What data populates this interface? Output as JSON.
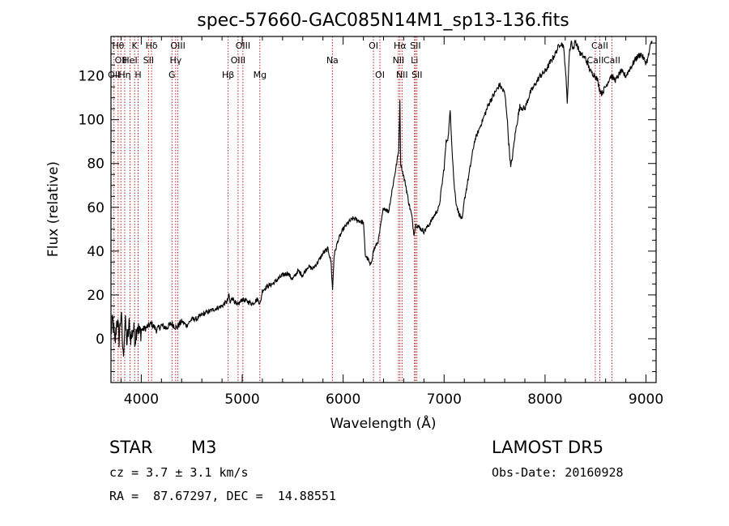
{
  "chart_data": {
    "type": "line",
    "title": "spec-57660-GAC085N14M1_sp13-136.fits",
    "xlabel": "Wavelength (Å)",
    "ylabel": "Flux (relative)",
    "xlim": [
      3700,
      9100
    ],
    "ylim": [
      -20,
      138
    ],
    "x_ticks": [
      4000,
      5000,
      6000,
      7000,
      8000,
      9000
    ],
    "y_ticks": [
      0,
      20,
      40,
      60,
      80,
      100,
      120
    ],
    "line_color": "#000000",
    "marker_color": "#b00000",
    "grid": false,
    "legend": "none",
    "series": [
      {
        "x": [
          3700,
          3720,
          3740,
          3760,
          3780,
          3800,
          3820,
          3840,
          3860,
          3880,
          3900,
          3920,
          3940,
          3960,
          3980,
          4000,
          4050,
          4100,
          4150,
          4200,
          4250,
          4300,
          4350,
          4400,
          4450,
          4500,
          4550,
          4600,
          4650,
          4700,
          4750,
          4800,
          4850,
          4870,
          4880,
          4900,
          4950,
          5000,
          5050,
          5100,
          5150,
          5180,
          5200,
          5250,
          5300,
          5350,
          5400,
          5450,
          5500,
          5550,
          5600,
          5650,
          5700,
          5750,
          5800,
          5850,
          5880,
          5895,
          5910,
          5950,
          6000,
          6050,
          6100,
          6150,
          6200,
          6220,
          6250,
          6270,
          6300,
          6350,
          6400,
          6450,
          6500,
          6530,
          6550,
          6562,
          6570,
          6590,
          6620,
          6650,
          6680,
          6700,
          6720,
          6750,
          6800,
          6850,
          6900,
          6950,
          7000,
          7020,
          7040,
          7060,
          7080,
          7100,
          7120,
          7140,
          7160,
          7180,
          7200,
          7250,
          7300,
          7350,
          7400,
          7450,
          7500,
          7550,
          7600,
          7620,
          7640,
          7660,
          7680,
          7700,
          7720,
          7750,
          7800,
          7850,
          7900,
          7950,
          8000,
          8050,
          8100,
          8150,
          8180,
          8200,
          8220,
          8240,
          8260,
          8280,
          8300,
          8350,
          8400,
          8450,
          8500,
          8520,
          8540,
          8560,
          8600,
          8650,
          8700,
          8750,
          8800,
          8850,
          8900,
          8950,
          9000,
          9020,
          9040,
          9060
        ],
        "y": [
          3,
          8,
          -3,
          10,
          0,
          12,
          -8,
          8,
          -2,
          6,
          0,
          5,
          0,
          7,
          2,
          4,
          5,
          7,
          4,
          6,
          5,
          7,
          5,
          8,
          6,
          9,
          9,
          11,
          12,
          13,
          14,
          15,
          17,
          20,
          16,
          19,
          15,
          18,
          17,
          16,
          18,
          16,
          22,
          24,
          25,
          27,
          29,
          30,
          27,
          31,
          29,
          33,
          32,
          35,
          39,
          41,
          35,
          22,
          38,
          45,
          50,
          53,
          55,
          54,
          53,
          38,
          36,
          33,
          40,
          45,
          60,
          58,
          72,
          80,
          86,
          108,
          80,
          76,
          70,
          62,
          56,
          48,
          52,
          51,
          49,
          52,
          56,
          60,
          78,
          90,
          92,
          104,
          86,
          70,
          62,
          58,
          56,
          54,
          63,
          76,
          90,
          96,
          102,
          108,
          112,
          116,
          112,
          104,
          90,
          78,
          84,
          92,
          98,
          106,
          105,
          112,
          116,
          120,
          122,
          126,
          130,
          135,
          134,
          125,
          108,
          130,
          136,
          132,
          136,
          130,
          128,
          122,
          120,
          118,
          114,
          112,
          115,
          120,
          118,
          122,
          120,
          124,
          128,
          130,
          126,
          128,
          133,
          136
        ]
      }
    ],
    "lines": [
      {
        "x": 3730,
        "label": "OII",
        "row": 2
      },
      {
        "x": 3771,
        "label": "Hθ",
        "row": 0
      },
      {
        "x": 3798,
        "label": "OII",
        "row": 1
      },
      {
        "x": 3836,
        "label": "Hη",
        "row": 2
      },
      {
        "x": 3889,
        "label": "HeI",
        "row": 1
      },
      {
        "x": 3934,
        "label": "K",
        "row": 0
      },
      {
        "x": 3969,
        "label": "H",
        "row": 2
      },
      {
        "x": 4072,
        "label": "SII",
        "row": 1
      },
      {
        "x": 4102,
        "label": "Hδ",
        "row": 0
      },
      {
        "x": 4304,
        "label": "G",
        "row": 2
      },
      {
        "x": 4341,
        "label": "Hγ",
        "row": 1
      },
      {
        "x": 4363,
        "label": "OIII",
        "row": 0
      },
      {
        "x": 4861,
        "label": "Hβ",
        "row": 2
      },
      {
        "x": 4959,
        "label": "OIII",
        "row": 1
      },
      {
        "x": 5007,
        "label": "OIII",
        "row": 0
      },
      {
        "x": 5175,
        "label": "Mg",
        "row": 2
      },
      {
        "x": 5893,
        "label": "Na",
        "row": 1
      },
      {
        "x": 6300,
        "label": "OI",
        "row": 0
      },
      {
        "x": 6364,
        "label": "OI",
        "row": 2
      },
      {
        "x": 6548,
        "label": "NII",
        "row": 1
      },
      {
        "x": 6563,
        "label": "Hα",
        "row": 0
      },
      {
        "x": 6583,
        "label": "NII",
        "row": 2
      },
      {
        "x": 6707,
        "label": "Li",
        "row": 1
      },
      {
        "x": 6716,
        "label": "SII",
        "row": 0
      },
      {
        "x": 6731,
        "label": "SII",
        "row": 2
      },
      {
        "x": 8498,
        "label": "CaII",
        "row": 1
      },
      {
        "x": 8542,
        "label": "CaII",
        "row": 0
      },
      {
        "x": 8662,
        "label": "CaII",
        "row": 1
      }
    ]
  },
  "info": {
    "object_class": "STAR",
    "subclass": "M3",
    "survey": "LAMOST DR5",
    "redshift": "cz = 3.7 ± 3.1 km/s",
    "obs_date": "Obs-Date: 20160928",
    "coords": "RA =  87.67297, DEC =  14.88551"
  }
}
